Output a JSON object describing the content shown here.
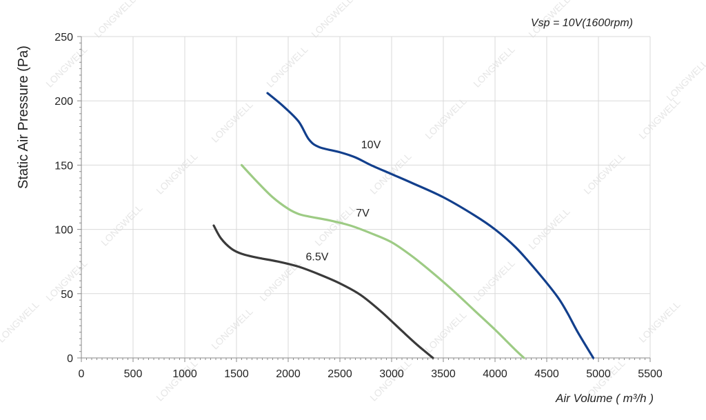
{
  "chart_data": {
    "type": "line",
    "annotation_top": "Vsp = 10V(1600rpm)",
    "xlabel": "Air Volume ( m³/h )",
    "ylabel": "Static Air Pressure  (Pa)",
    "xlim": [
      0,
      5500
    ],
    "ylim": [
      0,
      250
    ],
    "x_ticks": [
      0,
      500,
      1000,
      1500,
      2000,
      2500,
      3000,
      3500,
      4000,
      4500,
      5000,
      5500
    ],
    "y_ticks": [
      0,
      50,
      100,
      150,
      200,
      250
    ],
    "grid": true,
    "watermark": "LONGWELL",
    "series": [
      {
        "name": "10V",
        "color": "#123f8c",
        "x": [
          1800,
          1950,
          2100,
          2200,
          2300,
          2500,
          2650,
          2800,
          3000,
          3200,
          3500,
          3800,
          4000,
          4200,
          4400,
          4600,
          4700,
          4800,
          4950
        ],
        "y": [
          206,
          196,
          184,
          170,
          164,
          160,
          156,
          150,
          143,
          136,
          125,
          111,
          100,
          86,
          68,
          48,
          35,
          20,
          0
        ]
      },
      {
        "name": "7V",
        "color": "#9dcb84",
        "x": [
          1550,
          1700,
          1850,
          2000,
          2100,
          2200,
          2400,
          2600,
          2800,
          3000,
          3200,
          3400,
          3600,
          3800,
          4000,
          4100,
          4200,
          4280
        ],
        "y": [
          150,
          137,
          125,
          116,
          112,
          110,
          107,
          103,
          97,
          90,
          79,
          66,
          52,
          37,
          22,
          14,
          6,
          0
        ]
      },
      {
        "name": "6.5V",
        "color": "#3a3a3a",
        "x": [
          1280,
          1350,
          1450,
          1550,
          1700,
          1900,
          2100,
          2300,
          2500,
          2700,
          2900,
          3100,
          3250,
          3400
        ],
        "y": [
          103,
          93,
          85,
          81,
          78,
          75,
          71,
          65,
          58,
          49,
          36,
          21,
          10,
          0
        ]
      }
    ],
    "series_labels": [
      {
        "text": "10V",
        "x": 2800,
        "y": 163
      },
      {
        "text": "7V",
        "x": 2720,
        "y": 110
      },
      {
        "text": "6.5V",
        "x": 2280,
        "y": 76
      }
    ]
  }
}
